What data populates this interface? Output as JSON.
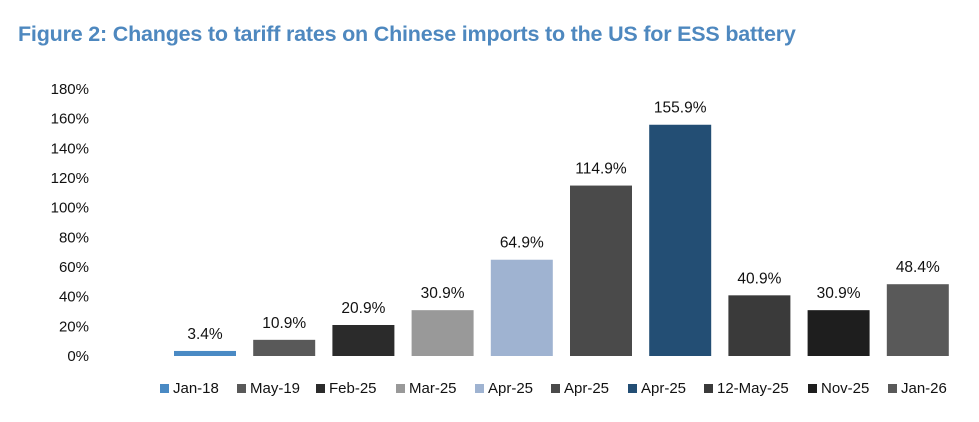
{
  "chart_data": {
    "type": "bar",
    "title": "Figure 2: Changes to tariff rates on Chinese imports to the US for ESS battery",
    "xlabel": "",
    "ylabel": "",
    "ylim": [
      0,
      180
    ],
    "y_ticks": [
      0,
      20,
      40,
      60,
      80,
      100,
      120,
      140,
      160,
      180
    ],
    "y_tick_labels": [
      "0%",
      "20%",
      "40%",
      "60%",
      "80%",
      "100%",
      "120%",
      "140%",
      "160%",
      "180%"
    ],
    "legend_position": "bottom",
    "grid": false,
    "categories": [
      "Jan-18",
      "May-19",
      "Feb-25",
      "Mar-25",
      "Apr-25",
      "Apr-25",
      "Apr-25",
      "12-May-25",
      "Nov-25",
      "Jan-26"
    ],
    "values": [
      3.4,
      10.9,
      20.9,
      30.9,
      64.9,
      114.9,
      155.9,
      40.9,
      30.9,
      48.4
    ],
    "value_labels": [
      "3.4%",
      "10.9%",
      "20.9%",
      "30.9%",
      "64.9%",
      "114.9%",
      "155.9%",
      "40.9%",
      "30.9%",
      "48.4%"
    ],
    "colors": [
      "#4a8ac4",
      "#595959",
      "#2b2b2b",
      "#999999",
      "#9fb3d1",
      "#4a4a4a",
      "#234e74",
      "#3a3a3a",
      "#1e1e1e",
      "#595959"
    ]
  }
}
